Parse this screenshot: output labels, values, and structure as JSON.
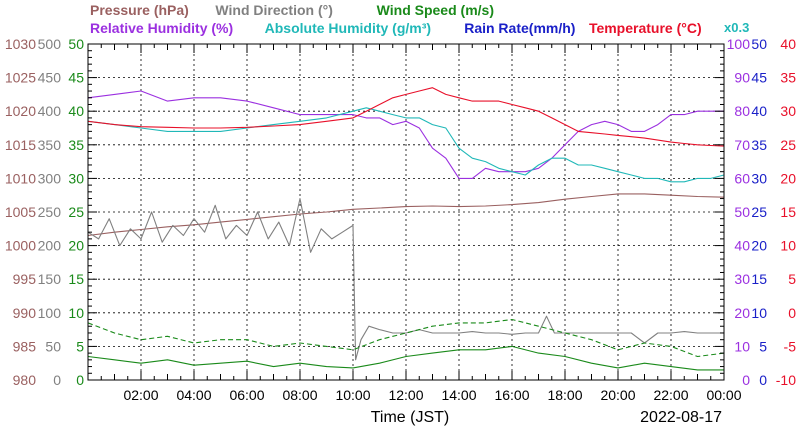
{
  "chart_data": {
    "type": "line",
    "title_row1": [
      {
        "id": "pressure",
        "text": "Pressure (hPa)",
        "color": "#9a6060"
      },
      {
        "id": "wind-dir",
        "text": "Wind Direction (°)",
        "color": "#808080"
      },
      {
        "id": "wind-speed",
        "text": "Wind Speed (m/s)",
        "color": "#1a8a1a"
      }
    ],
    "title_row2": [
      {
        "id": "rel-hum",
        "text": "Relative Humidity (%)",
        "color": "#9b30e0"
      },
      {
        "id": "abs-hum",
        "text": "Absolute Humidity (g/m³)",
        "color": "#20b8b8"
      },
      {
        "id": "rain-rate",
        "text": "Rain Rate(mm/h)",
        "color": "#1a20c8"
      },
      {
        "id": "temperature",
        "text": "Temperature (°C)",
        "color": "#e8102a"
      }
    ],
    "multiplier_label": "x0.3",
    "xlabel": "Time (JST)",
    "date_label": "2022-08-17",
    "x_range_hours": [
      0,
      24
    ],
    "x_ticks": [
      "02:00",
      "04:00",
      "06:00",
      "08:00",
      "10:00",
      "12:00",
      "14:00",
      "16:00",
      "18:00",
      "20:00",
      "22:00",
      "00:00"
    ],
    "grid": true,
    "axes": {
      "pressure": {
        "side": "left",
        "color": "#9a6060",
        "range": [
          980,
          1030
        ],
        "ticks": [
          "980",
          "985",
          "990",
          "995",
          "1000",
          "1005",
          "1010",
          "1015",
          "1020",
          "1025",
          "1030"
        ]
      },
      "wind_direction": {
        "side": "left",
        "color": "#808080",
        "range": [
          0,
          500
        ],
        "ticks": [
          "0",
          "50",
          "100",
          "150",
          "200",
          "250",
          "300",
          "350",
          "400",
          "450",
          "500"
        ]
      },
      "wind_speed": {
        "side": "left",
        "color": "#1a8a1a",
        "range": [
          0,
          50
        ],
        "ticks": [
          "0",
          "5",
          "10",
          "15",
          "20",
          "25",
          "30",
          "35",
          "40",
          "45",
          "50"
        ]
      },
      "humidity": {
        "side": "right",
        "color": "#9b30e0",
        "range": [
          0,
          100
        ],
        "ticks": [
          "0",
          "10",
          "20",
          "30",
          "40",
          "50",
          "60",
          "70",
          "80",
          "90",
          "100"
        ]
      },
      "rain_rate": {
        "side": "right",
        "color": "#1a20c8",
        "range": [
          0,
          50
        ],
        "ticks": [
          "0",
          "5",
          "10",
          "15",
          "20",
          "25",
          "30",
          "35",
          "40",
          "45",
          "50"
        ]
      },
      "temperature": {
        "side": "right",
        "color": "#e8102a",
        "range": [
          -10,
          40
        ],
        "ticks": [
          "-10",
          "-5",
          "0",
          "5",
          "10",
          "15",
          "20",
          "25",
          "30",
          "35",
          "40"
        ]
      }
    },
    "series": [
      {
        "name": "Pressure (hPa)",
        "axis": "pressure",
        "color": "#9a6060",
        "style": "solid",
        "x": [
          0,
          1,
          2,
          3,
          4,
          5,
          6,
          7,
          8,
          9,
          10,
          11,
          12,
          13,
          14,
          15,
          16,
          17,
          18,
          19,
          20,
          21,
          22,
          23,
          24
        ],
        "y": [
          1001.5,
          1002,
          1002.4,
          1002.8,
          1003.1,
          1003.5,
          1003.9,
          1004.3,
          1004.7,
          1005,
          1005.4,
          1005.6,
          1005.8,
          1005.9,
          1005.8,
          1005.9,
          1006.1,
          1006.4,
          1006.9,
          1007.3,
          1007.7,
          1007.7,
          1007.5,
          1007.3,
          1007.2
        ]
      },
      {
        "name": "Wind Direction (°)",
        "axis": "wind_direction",
        "color": "#808080",
        "style": "solid",
        "x": [
          0,
          0.4,
          0.8,
          1.2,
          1.6,
          2,
          2.4,
          2.8,
          3.2,
          3.6,
          4,
          4.4,
          4.8,
          5.2,
          5.6,
          6,
          6.4,
          6.8,
          7.2,
          7.6,
          8,
          8.4,
          8.8,
          9.2,
          9.6,
          10,
          10.1,
          10.3,
          10.6,
          11,
          11.5,
          12,
          12.5,
          13,
          13.5,
          14,
          14.5,
          15,
          15.5,
          16,
          16.5,
          17,
          17.3,
          17.6,
          18,
          18.5,
          19,
          19.5,
          20,
          20.5,
          21,
          21.5,
          22,
          22.5,
          23,
          23.5,
          24
        ],
        "y": [
          220,
          210,
          240,
          200,
          225,
          210,
          250,
          205,
          230,
          215,
          240,
          220,
          260,
          210,
          230,
          215,
          250,
          210,
          235,
          200,
          270,
          190,
          225,
          210,
          220,
          230,
          30,
          60,
          80,
          75,
          70,
          70,
          75,
          70,
          70,
          70,
          72,
          70,
          70,
          68,
          70,
          70,
          95,
          70,
          70,
          70,
          70,
          70,
          70,
          70,
          55,
          70,
          70,
          72,
          70,
          70,
          70
        ]
      },
      {
        "name": "Wind Speed (m/s)",
        "axis": "wind_speed",
        "color": "#1a8a1a",
        "style": "solid",
        "x": [
          0,
          1,
          2,
          3,
          4,
          5,
          6,
          7,
          8,
          9,
          10,
          11,
          12,
          13,
          14,
          15,
          16,
          17,
          18,
          19,
          20,
          21,
          22,
          23,
          24
        ],
        "y": [
          3.5,
          3,
          2.5,
          3,
          2.2,
          2.5,
          2.8,
          2,
          2.5,
          2,
          1.8,
          2.5,
          3.5,
          4,
          4.5,
          4.5,
          5,
          4,
          3.5,
          2.5,
          1.8,
          2.5,
          2,
          1.5,
          1.5
        ]
      },
      {
        "name": "Wind Speed gust (m/s)",
        "axis": "wind_speed",
        "color": "#1a8a1a",
        "style": "dashed",
        "x": [
          0,
          1,
          2,
          3,
          4,
          5,
          6,
          7,
          8,
          9,
          10,
          11,
          12,
          13,
          14,
          15,
          16,
          17,
          18,
          19,
          20,
          21,
          22,
          23,
          24
        ],
        "y": [
          8.5,
          7,
          6,
          6.5,
          5.5,
          6,
          6,
          5,
          5.5,
          5,
          4.5,
          6,
          7,
          8,
          8.5,
          8.5,
          9,
          8,
          7,
          6,
          4.5,
          5.5,
          5,
          3.5,
          4
        ]
      },
      {
        "name": "Relative Humidity (%)",
        "axis": "humidity",
        "color": "#9b30e0",
        "style": "solid",
        "x": [
          0,
          1,
          2,
          3,
          4,
          5,
          6,
          7,
          8,
          9,
          10,
          10.5,
          11,
          11.5,
          12,
          12.5,
          13,
          13.5,
          14,
          14.5,
          15,
          15.5,
          16,
          16.5,
          17,
          17.5,
          18,
          18.5,
          19,
          19.5,
          20,
          20.5,
          21,
          21.5,
          22,
          22.5,
          23,
          23.5,
          24
        ],
        "y": [
          84,
          85,
          86,
          83,
          84,
          84,
          83,
          81,
          79,
          79,
          79,
          78,
          78,
          76,
          77,
          75,
          69,
          66,
          60,
          60,
          63,
          62,
          62,
          62,
          63,
          66,
          70,
          74,
          76,
          77,
          76,
          74,
          74,
          76,
          79,
          79,
          80,
          80,
          80
        ]
      },
      {
        "name": "Absolute Humidity (g/m³)",
        "axis": "humidity",
        "color": "#20b8b8",
        "style": "solid",
        "x": [
          0,
          1,
          2,
          3,
          4,
          5,
          6,
          7,
          8,
          9,
          10,
          10.5,
          11,
          11.5,
          12,
          12.5,
          13,
          13.5,
          14,
          14.5,
          15,
          15.5,
          16,
          16.5,
          17,
          17.5,
          18,
          18.5,
          19,
          19.5,
          20,
          20.5,
          21,
          21.5,
          22,
          22.5,
          23,
          23.5,
          24
        ],
        "y": [
          77,
          76,
          75,
          74,
          74,
          74,
          75,
          76,
          77,
          78,
          80,
          81,
          80,
          79,
          78,
          78,
          76,
          75,
          69,
          66,
          65,
          63,
          62,
          61,
          64,
          66,
          66,
          64,
          64,
          63,
          62,
          61,
          60,
          60,
          59,
          59,
          60,
          60,
          61
        ]
      },
      {
        "name": "Temperature (°C)",
        "axis": "temperature",
        "color": "#e8102a",
        "style": "solid",
        "x": [
          0,
          1,
          2,
          3,
          4,
          5,
          6,
          7,
          8,
          9,
          10,
          10.5,
          11,
          11.5,
          12,
          12.5,
          13,
          13.5,
          14,
          14.5,
          15,
          15.5,
          16,
          16.5,
          17,
          17.5,
          18,
          18.5,
          19,
          19.5,
          20,
          20.5,
          21,
          21.5,
          22,
          22.5,
          23,
          23.5,
          24
        ],
        "y": [
          28.5,
          28,
          27.7,
          27.6,
          27.5,
          27.5,
          27.6,
          27.8,
          28,
          28.5,
          29,
          30,
          31,
          32,
          32.5,
          33,
          33.5,
          32.5,
          32,
          31.5,
          31.5,
          31.5,
          31,
          30.5,
          30,
          29,
          28,
          27,
          26.8,
          26.6,
          26.4,
          26.2,
          26,
          25.7,
          25.4,
          25.2,
          25,
          24.9,
          24.8
        ]
      }
    ]
  }
}
